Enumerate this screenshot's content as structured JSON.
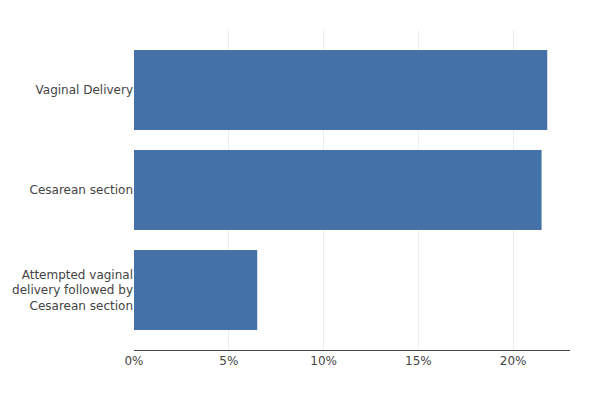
{
  "chart_data": {
    "type": "bar",
    "orientation": "horizontal",
    "categories": [
      "Attempted vaginal\ndelivery followed by\nCesarean section",
      "Cesarean section",
      "Vaginal Delivery"
    ],
    "values": [
      6.5,
      21.5,
      21.8
    ],
    "color": "#4472a8",
    "xlim": [
      0,
      23
    ],
    "xticks": [
      {
        "value": 0,
        "label": "0%"
      },
      {
        "value": 5,
        "label": "5%"
      },
      {
        "value": 10,
        "label": "10%"
      },
      {
        "value": 15,
        "label": "15%"
      },
      {
        "value": 20,
        "label": "20%"
      }
    ],
    "grid": true
  }
}
